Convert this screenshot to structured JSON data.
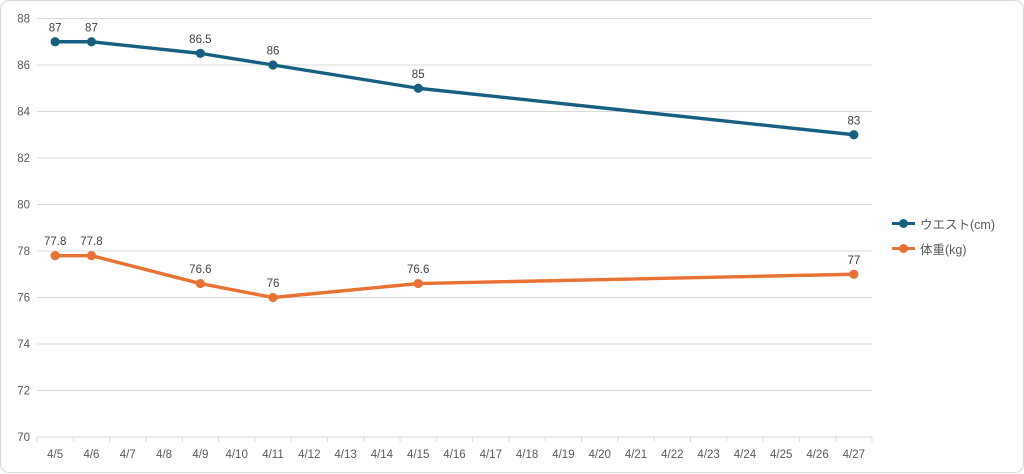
{
  "chart_data": {
    "type": "line",
    "title": "",
    "categories": [
      "4/5",
      "4/6",
      "4/7",
      "4/8",
      "4/9",
      "4/10",
      "4/11",
      "4/12",
      "4/13",
      "4/14",
      "4/15",
      "4/16",
      "4/17",
      "4/18",
      "4/19",
      "4/20",
      "4/21",
      "4/22",
      "4/23",
      "4/24",
      "4/25",
      "4/26",
      "4/27"
    ],
    "y_axis": {
      "min": 70,
      "max": 88,
      "step": 2,
      "tick_labels": [
        "70",
        "72",
        "74",
        "76",
        "78",
        "80",
        "82",
        "84",
        "86",
        "88"
      ]
    },
    "grid": true,
    "legend_position": "right",
    "series": [
      {
        "id": "waist",
        "name": "ウエスト(cm)",
        "color": "#156082",
        "points": [
          {
            "category": "4/5",
            "value": 87,
            "label": "87"
          },
          {
            "category": "4/6",
            "value": 87,
            "label": "87"
          },
          {
            "category": "4/9",
            "value": 86.5,
            "label": "86.5"
          },
          {
            "category": "4/11",
            "value": 86,
            "label": "86"
          },
          {
            "category": "4/15",
            "value": 85,
            "label": "85"
          },
          {
            "category": "4/27",
            "value": 83,
            "label": "83"
          }
        ]
      },
      {
        "id": "weight",
        "name": "体重(kg)",
        "color": "#E97132",
        "points": [
          {
            "category": "4/5",
            "value": 77.8,
            "label": "77.8"
          },
          {
            "category": "4/6",
            "value": 77.8,
            "label": "77.8"
          },
          {
            "category": "4/9",
            "value": 76.6,
            "label": "76.6"
          },
          {
            "category": "4/11",
            "value": 76,
            "label": "76"
          },
          {
            "category": "4/15",
            "value": 76.6,
            "label": "76.6"
          },
          {
            "category": "4/27",
            "value": 77,
            "label": "77"
          }
        ]
      }
    ],
    "colors": {
      "gridline": "#D9D9D9",
      "axis_line": "#D9D9D9",
      "axis_text": "#595959",
      "data_label": "#404040",
      "legend_text": "#595959",
      "background": "#FFFFFF",
      "border": "#D9D9D9"
    }
  }
}
